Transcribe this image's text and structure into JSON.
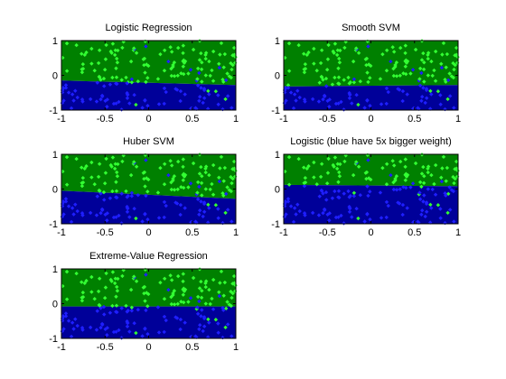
{
  "chart_data": [
    {
      "type": "scatter",
      "title": "Logistic Regression",
      "xlim": [
        -1,
        1
      ],
      "ylim": [
        -1,
        1
      ],
      "xticks": [
        -1,
        -0.5,
        0,
        0.5,
        1
      ],
      "xtick_labels": [
        "-1",
        "-0.5",
        "0",
        "0.5",
        "1"
      ],
      "yticks": [
        -1,
        0,
        1
      ],
      "ytick_labels": [
        "-1",
        "0",
        "1"
      ],
      "decision_boundary": [
        [
          -1,
          -0.15
        ],
        [
          1,
          -0.28
        ]
      ],
      "region_colors": {
        "above": "#008000",
        "below": "#000099"
      },
      "marker_colors": {
        "positive": "#33ff33",
        "negative": "#1f1fff"
      }
    },
    {
      "type": "scatter",
      "title": "Smooth SVM",
      "xlim": [
        -1,
        1
      ],
      "ylim": [
        -1,
        1
      ],
      "xticks": [
        -1,
        -0.5,
        0,
        0.5,
        1
      ],
      "xtick_labels": [
        "-1",
        "-0.5",
        "0",
        "0.5",
        "1"
      ],
      "yticks": [
        -1,
        0,
        1
      ],
      "ytick_labels": [
        "-1",
        "0",
        "1"
      ],
      "decision_boundary": [
        [
          -1,
          -0.32
        ],
        [
          1,
          -0.28
        ]
      ],
      "region_colors": {
        "above": "#008000",
        "below": "#000099"
      },
      "marker_colors": {
        "positive": "#33ff33",
        "negative": "#1f1fff"
      }
    },
    {
      "type": "scatter",
      "title": "Huber SVM",
      "xlim": [
        -1,
        1
      ],
      "ylim": [
        -1,
        1
      ],
      "xticks": [
        -1,
        -0.5,
        0,
        0.5,
        1
      ],
      "xtick_labels": [
        "-1",
        "-0.5",
        "0",
        "0.5",
        "1"
      ],
      "yticks": [
        -1,
        0,
        1
      ],
      "ytick_labels": [
        "-1",
        "0",
        "1"
      ],
      "decision_boundary": [
        [
          -1,
          -0.05
        ],
        [
          1,
          -0.28
        ]
      ],
      "region_colors": {
        "above": "#008000",
        "below": "#000099"
      },
      "marker_colors": {
        "positive": "#33ff33",
        "negative": "#1f1fff"
      }
    },
    {
      "type": "scatter",
      "title": "Logistic (blue have 5x bigger weight)",
      "xlim": [
        -1,
        1
      ],
      "ylim": [
        -1,
        1
      ],
      "xticks": [
        -1,
        -0.5,
        0,
        0.5,
        1
      ],
      "xtick_labels": [
        "-1",
        "-0.5",
        "0",
        "0.5",
        "1"
      ],
      "yticks": [
        -1,
        0,
        1
      ],
      "ytick_labels": [
        "-1",
        "0",
        "1"
      ],
      "decision_boundary": [
        [
          -1,
          0.12
        ],
        [
          1,
          0.08
        ]
      ],
      "region_colors": {
        "above": "#008000",
        "below": "#000099"
      },
      "marker_colors": {
        "positive": "#33ff33",
        "negative": "#1f1fff"
      }
    },
    {
      "type": "scatter",
      "title": "Extreme-Value Regression",
      "xlim": [
        -1,
        1
      ],
      "ylim": [
        -1,
        1
      ],
      "xticks": [
        -1,
        -0.5,
        0,
        0.5,
        1
      ],
      "xtick_labels": [
        "-1",
        "-0.5",
        "0",
        "0.5",
        "1"
      ],
      "yticks": [
        -1,
        0,
        1
      ],
      "ytick_labels": [
        "-1",
        "0",
        "1"
      ],
      "decision_boundary": [
        [
          -1,
          -0.08
        ],
        [
          1,
          -0.08
        ]
      ],
      "region_colors": {
        "above": "#008000",
        "below": "#000099"
      },
      "marker_colors": {
        "positive": "#33ff33",
        "negative": "#1f1fff"
      }
    }
  ]
}
